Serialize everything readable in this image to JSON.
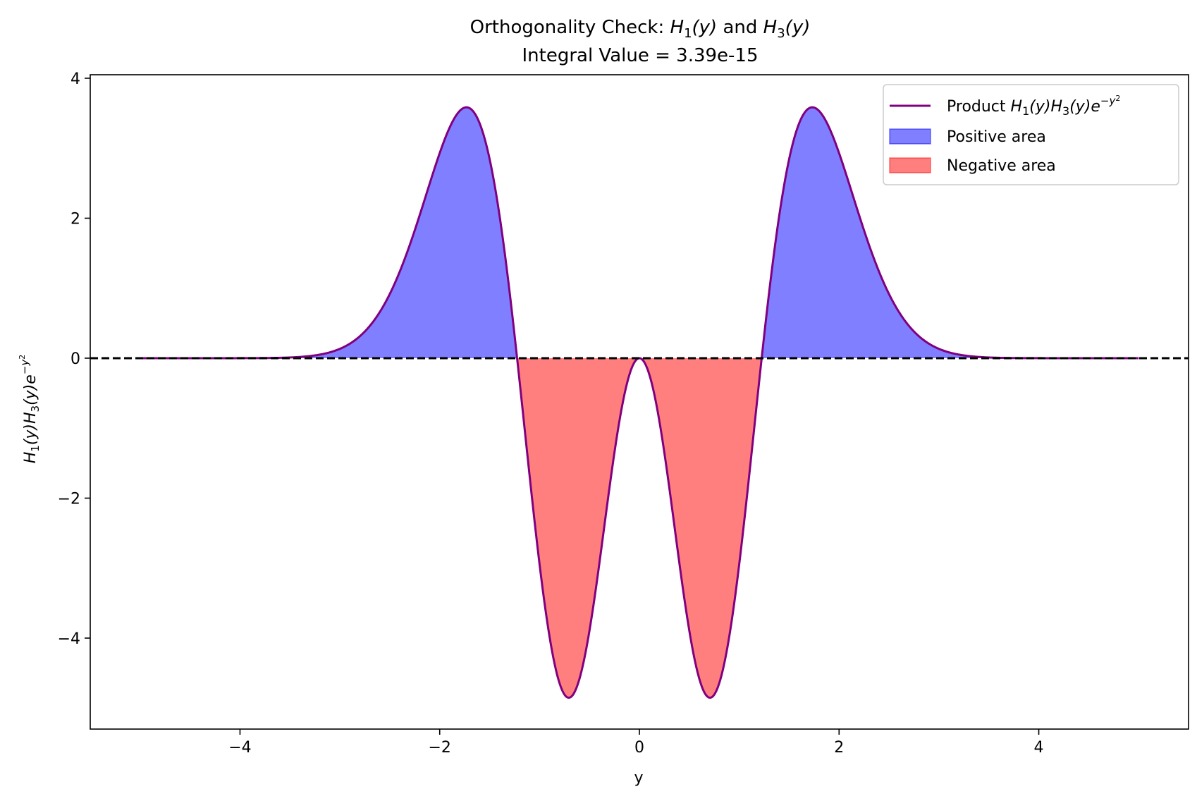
{
  "chart_data": {
    "type": "area",
    "title_line1_pre": "Orthogonality Check: ",
    "title_h1": "H",
    "title_h1_sub": "1",
    "title_h1_arg": "(y)",
    "title_mid": " and ",
    "title_h3": "H",
    "title_h3_sub": "3",
    "title_h3_arg": "(y)",
    "title_line2": "Integral Value = 3.39e-15",
    "xlabel": "y",
    "ylabel_parts": [
      "H",
      "1",
      "(y)H",
      "3",
      "(y)e",
      "−y",
      "2"
    ],
    "xlim": [
      -5.5,
      5.5
    ],
    "ylim": [
      -5.3,
      4.05
    ],
    "x_ticks": [
      -4,
      -2,
      0,
      2,
      4
    ],
    "x_tick_labels": [
      "−4",
      "−2",
      "0",
      "2",
      "4"
    ],
    "y_ticks": [
      -4,
      -2,
      0,
      2,
      4
    ],
    "y_tick_labels": [
      "−4",
      "−2",
      "0",
      "2",
      "4"
    ],
    "domain": [
      -5,
      5
    ],
    "series": [
      {
        "name": "Product H1(y)H3(y)e^{-y^2}",
        "function": "H1(y)*H3(y)*exp(-y^2), H1=2y, H3=8y^3-12y",
        "sample_points": {
          "x": [
            -5,
            -4,
            -3,
            -2.5,
            -2,
            -1.732,
            -1.5,
            -1.225,
            -1,
            -0.707,
            -0.5,
            0,
            0.5,
            0.707,
            1,
            1.225,
            1.5,
            1.732,
            2,
            2.5,
            3,
            4,
            5
          ],
          "y": [
            0.0,
            0.0,
            0.05,
            0.82,
            3.0,
            3.57,
            3.16,
            0.0,
            -2.94,
            -4.83,
            -3.12,
            0.0,
            -3.12,
            -4.83,
            -2.94,
            0.0,
            3.16,
            3.57,
            3.0,
            0.82,
            0.05,
            0.0,
            0.0
          ]
        },
        "color": "#800080"
      }
    ],
    "fill_positive": {
      "name": "Positive area",
      "color": "#0000ff",
      "opacity": 0.5
    },
    "fill_negative": {
      "name": "Negative area",
      "color": "#ff0000",
      "opacity": 0.5
    },
    "zero_line": {
      "style": "dashed",
      "color": "#000000"
    },
    "legend": {
      "placement": "top-right",
      "entries": [
        {
          "label_pre": "Product ",
          "math": [
            "H",
            "1",
            "(y)H",
            "3",
            "(y)e",
            "−y",
            "2"
          ]
        },
        {
          "label": "Positive area"
        },
        {
          "label": "Negative area"
        }
      ]
    },
    "grid": false
  }
}
